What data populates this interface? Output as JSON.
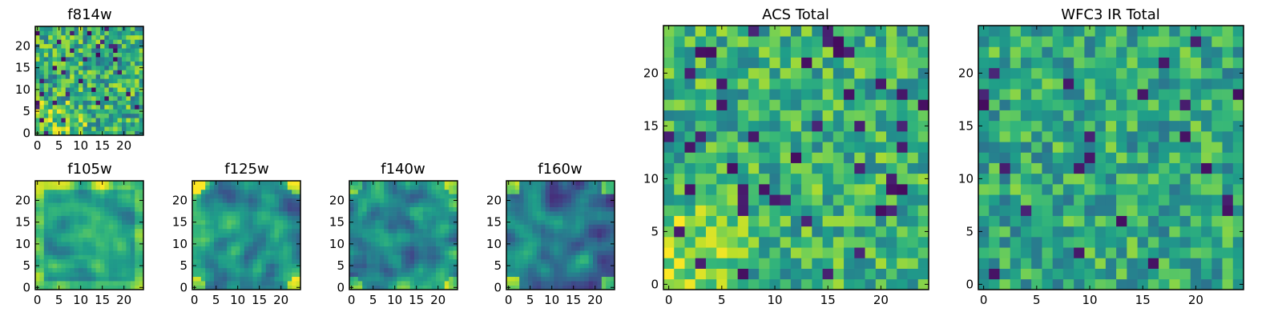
{
  "chart_data": [
    {
      "type": "heatmap",
      "title": "f814w",
      "xlabel": "",
      "ylabel": "",
      "shape": [
        25,
        25
      ],
      "xlim": [
        -0.5,
        24.5
      ],
      "ylim": [
        -0.5,
        24.5
      ],
      "xticks": [
        0,
        5,
        10,
        15,
        20
      ],
      "yticks": [
        0,
        5,
        10,
        15,
        20
      ],
      "colormap": "viridis",
      "pattern": "noise, high-valued band along bottom-left",
      "seed": 11
    },
    {
      "type": "heatmap",
      "title": "f105w",
      "xlabel": "",
      "ylabel": "",
      "shape": [
        25,
        25
      ],
      "xlim": [
        -0.5,
        24.5
      ],
      "ylim": [
        -0.5,
        24.5
      ],
      "xticks": [
        0,
        5,
        10,
        15,
        20
      ],
      "yticks": [
        0,
        5,
        10,
        15,
        20
      ],
      "colormap": "viridis",
      "pattern": "smooth, bright centre and corners",
      "seed": 23
    },
    {
      "type": "heatmap",
      "title": "f125w",
      "xlabel": "",
      "ylabel": "",
      "shape": [
        25,
        25
      ],
      "xlim": [
        -0.5,
        24.5
      ],
      "ylim": [
        -0.5,
        24.5
      ],
      "xticks": [
        0,
        5,
        10,
        15,
        20
      ],
      "yticks": [
        0,
        5,
        10,
        15,
        20
      ],
      "colormap": "viridis",
      "pattern": "smooth, bright corners",
      "seed": 37
    },
    {
      "type": "heatmap",
      "title": "f140w",
      "xlabel": "",
      "ylabel": "",
      "shape": [
        25,
        25
      ],
      "xlim": [
        -0.5,
        24.5
      ],
      "ylim": [
        -0.5,
        24.5
      ],
      "xticks": [
        0,
        5,
        10,
        15,
        20
      ],
      "yticks": [
        0,
        5,
        10,
        15,
        20
      ],
      "colormap": "viridis",
      "pattern": "smooth, bright corners",
      "seed": 41
    },
    {
      "type": "heatmap",
      "title": "f160w",
      "xlabel": "",
      "ylabel": "",
      "shape": [
        25,
        25
      ],
      "xlim": [
        -0.5,
        24.5
      ],
      "ylim": [
        -0.5,
        24.5
      ],
      "xticks": [
        0,
        5,
        10,
        15,
        20
      ],
      "yticks": [
        0,
        5,
        10,
        15,
        20
      ],
      "colormap": "viridis",
      "pattern": "smooth, darker overall, bright corners",
      "seed": 53
    },
    {
      "type": "heatmap",
      "title": "ACS Total",
      "xlabel": "",
      "ylabel": "",
      "shape": [
        25,
        25
      ],
      "xlim": [
        -0.5,
        24.5
      ],
      "ylim": [
        -0.5,
        24.5
      ],
      "xticks": [
        0,
        5,
        10,
        15,
        20
      ],
      "yticks": [
        0,
        5,
        10,
        15,
        20
      ],
      "colormap": "viridis",
      "pattern": "noise, bright bottom-left region",
      "seed": 67
    },
    {
      "type": "heatmap",
      "title": "WFC3 IR Total",
      "xlabel": "",
      "ylabel": "",
      "shape": [
        25,
        25
      ],
      "xlim": [
        -0.5,
        24.5
      ],
      "ylim": [
        -0.5,
        24.5
      ],
      "xticks": [
        0,
        5,
        10,
        15,
        20
      ],
      "yticks": [
        0,
        5,
        10,
        15,
        20
      ],
      "colormap": "viridis",
      "pattern": "noise, uniform mid-green",
      "seed": 79
    }
  ]
}
